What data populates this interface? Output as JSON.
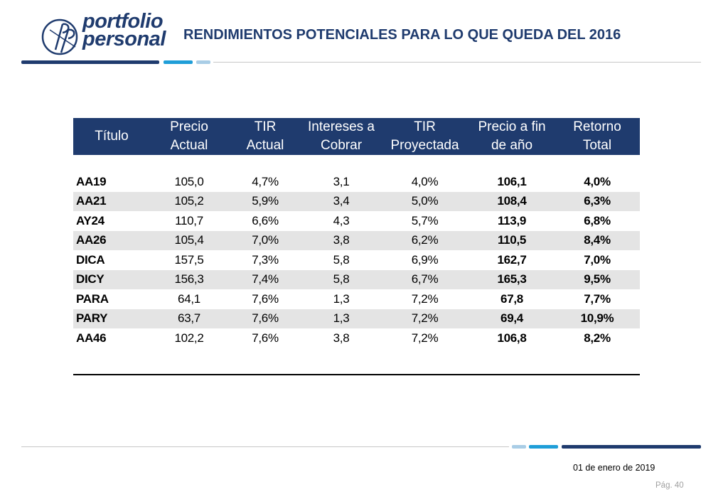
{
  "brand": {
    "line1": "portfolio",
    "line2": "personal",
    "monogram": "pp",
    "colors": {
      "navy": "#1f3b6e",
      "blue": "#1f9ed8",
      "light": "#a9cde6"
    }
  },
  "header": {
    "title": "RENDIMIENTOS POTENCIALES PARA LO QUE QUEDA DEL 2016"
  },
  "table": {
    "columns": [
      {
        "line1": "Título",
        "line2": ""
      },
      {
        "line1": "Precio",
        "line2": "Actual"
      },
      {
        "line1": "TIR",
        "line2": "Actual"
      },
      {
        "line1": "Intereses a",
        "line2": "Cobrar"
      },
      {
        "line1": "TIR",
        "line2": "Proyectada"
      },
      {
        "line1": "Precio a fin",
        "line2": "de año"
      },
      {
        "line1": "Retorno",
        "line2": "Total"
      }
    ],
    "rows": [
      [
        "AA19",
        "105,0",
        "4,7%",
        "3,1",
        "4,0%",
        "106,1",
        "4,0%"
      ],
      [
        "AA21",
        "105,2",
        "5,9%",
        "3,4",
        "5,0%",
        "108,4",
        "6,3%"
      ],
      [
        "AY24",
        "110,7",
        "6,6%",
        "4,3",
        "5,7%",
        "113,9",
        "6,8%"
      ],
      [
        "AA26",
        "105,4",
        "7,0%",
        "3,8",
        "6,2%",
        "110,5",
        "8,4%"
      ],
      [
        "DICA",
        "157,5",
        "7,3%",
        "5,8",
        "6,9%",
        "162,7",
        "7,0%"
      ],
      [
        "DICY",
        "156,3",
        "7,4%",
        "5,8",
        "6,7%",
        "165,3",
        "9,5%"
      ],
      [
        "PARA",
        "64,1",
        "7,6%",
        "1,3",
        "7,2%",
        "67,8",
        "7,7%"
      ],
      [
        "PARY",
        "63,7",
        "7,6%",
        "1,3",
        "7,2%",
        "69,4",
        "10,9%"
      ],
      [
        "AA46",
        "102,2",
        "7,6%",
        "3,8",
        "7,2%",
        "106,8",
        "8,2%"
      ]
    ]
  },
  "footer": {
    "date": "01 de enero de 2019",
    "page": "Pág. 40"
  }
}
